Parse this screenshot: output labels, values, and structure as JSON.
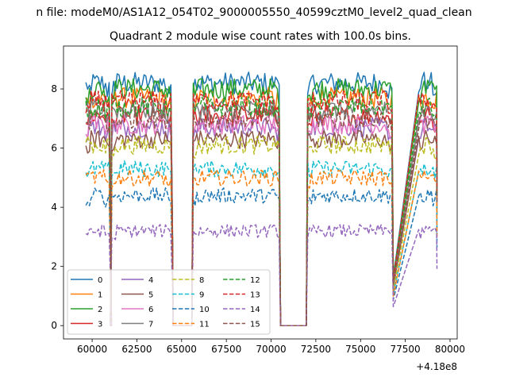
{
  "figure": {
    "suptitle": "n file: modeM0/AS1A12_054T02_9000005550_40599cztM0_level2_quad_clean"
  },
  "chart_data": {
    "type": "line",
    "title": "Quadrant 2 module wise count rates with 100.0s bins.",
    "xlabel": "",
    "ylabel": "",
    "x_offset_label": "+4.18e8",
    "xlim": [
      58400,
      80400
    ],
    "ylim": [
      -0.45,
      9.45
    ],
    "x_ticks": [
      60000,
      62500,
      65000,
      67500,
      70000,
      72500,
      75000,
      77500,
      80000
    ],
    "x_tick_labels": [
      "60000",
      "62500",
      "65000",
      "67500",
      "70000",
      "72500",
      "75000",
      "77500",
      "80000"
    ],
    "y_ticks": [
      0,
      2,
      4,
      6,
      8
    ],
    "y_tick_labels": [
      "0",
      "2",
      "4",
      "6",
      "8"
    ],
    "grid": false,
    "legend_placement": "lower-left",
    "legend_columns": 4,
    "segments": [
      {
        "start": 59650,
        "end": 61000
      },
      {
        "start": 61100,
        "end": 64450
      },
      {
        "start": 65650,
        "end": 70450
      },
      {
        "start": 72050,
        "end": 76800
      },
      {
        "start": 78250,
        "end": 79250
      }
    ],
    "gaps_zero": [
      {
        "start": 64450,
        "end": 65650
      },
      {
        "start": 70750,
        "end": 72050
      },
      {
        "start": 76800,
        "end": 78250
      }
    ],
    "series": [
      {
        "name": "0",
        "level": 8.2,
        "color": "#1f77b4",
        "dash": "solid"
      },
      {
        "name": "1",
        "level": 7.7,
        "color": "#ff7f0e",
        "dash": "solid"
      },
      {
        "name": "2",
        "level": 8.0,
        "color": "#2ca02c",
        "dash": "solid"
      },
      {
        "name": "3",
        "level": 7.1,
        "color": "#d62728",
        "dash": "solid"
      },
      {
        "name": "4",
        "level": 6.7,
        "color": "#9467bd",
        "dash": "solid"
      },
      {
        "name": "5",
        "level": 6.3,
        "color": "#8c564b",
        "dash": "solid"
      },
      {
        "name": "6",
        "level": 6.8,
        "color": "#e377c2",
        "dash": "solid"
      },
      {
        "name": "7",
        "level": 7.3,
        "color": "#7f7f7f",
        "dash": "solid"
      },
      {
        "name": "8",
        "level": 6.1,
        "color": "#bcbd22",
        "dash": "dashed"
      },
      {
        "name": "9",
        "level": 5.3,
        "color": "#17becf",
        "dash": "dashed"
      },
      {
        "name": "10",
        "level": 4.4,
        "color": "#1f77b4",
        "dash": "dashed"
      },
      {
        "name": "11",
        "level": 5.0,
        "color": "#ff7f0e",
        "dash": "dashed"
      },
      {
        "name": "12",
        "level": 7.4,
        "color": "#2ca02c",
        "dash": "dashed"
      },
      {
        "name": "13",
        "level": 7.6,
        "color": "#d62728",
        "dash": "dashed"
      },
      {
        "name": "14",
        "level": 3.2,
        "color": "#9467bd",
        "dash": "dashed"
      },
      {
        "name": "15",
        "level": 7.0,
        "color": "#8c564b",
        "dash": "dashed"
      }
    ]
  }
}
